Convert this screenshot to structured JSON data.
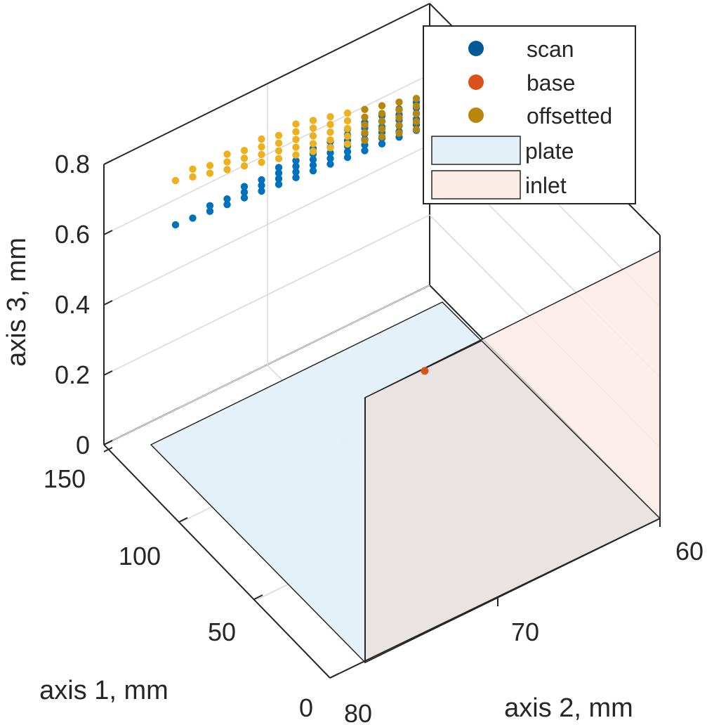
{
  "chart_data": {
    "type": "scatter",
    "projection": "3d",
    "title": "",
    "xlabel": "axis 1, mm",
    "ylabel": "axis 2, mm",
    "zlabel": "axis 3, mm",
    "xlim": [
      0,
      150
    ],
    "ylim": [
      60,
      80
    ],
    "zlim": [
      0,
      0.8
    ],
    "xticks": [
      "0",
      "50",
      "100",
      "150"
    ],
    "yticks": [
      "60",
      "70",
      "80"
    ],
    "zticks": [
      "0",
      "0.2",
      "0.4",
      "0.6",
      "0.8"
    ],
    "grid": true,
    "legend_position": "top-right",
    "legend": [
      {
        "label": "scan",
        "marker": "dot",
        "color": "#005a96"
      },
      {
        "label": "base",
        "marker": "dot",
        "color": "#d95319"
      },
      {
        "label": "offsetted",
        "marker": "dot",
        "color": "#b8860b"
      },
      {
        "label": "plate",
        "marker": "patch",
        "color": "#e3f0f8"
      },
      {
        "label": "inlet",
        "marker": "patch",
        "color": "#fbebe6"
      }
    ],
    "series": [
      {
        "name": "scan",
        "color": "#0072bd",
        "points_note_units": "x: axis 1 (mm), y: axis 2 (mm), z: axis 3 (mm)",
        "points": [
          [
            150,
            79.5,
            0.62
          ],
          [
            150,
            78.5,
            0.62
          ],
          [
            150,
            77.5,
            0.63
          ],
          [
            150,
            76.5,
            0.64
          ],
          [
            150,
            75.5,
            0.65
          ],
          [
            150,
            74.5,
            0.66
          ],
          [
            150,
            73.5,
            0.67
          ],
          [
            150,
            72.5,
            0.68
          ],
          [
            150,
            71.5,
            0.69
          ],
          [
            150,
            70.5,
            0.7
          ],
          [
            150,
            69.5,
            0.71
          ],
          [
            150,
            68.5,
            0.72
          ],
          [
            150,
            67.5,
            0.73
          ],
          [
            150,
            66.5,
            0.74
          ],
          [
            150,
            65.5,
            0.75
          ],
          [
            150,
            64.5,
            0.76
          ]
        ]
      },
      {
        "name": "base",
        "color": "#d95319",
        "points": [
          [
            40,
            72.5,
            0.2
          ]
        ]
      },
      {
        "name": "offsetted",
        "color": "#edb120",
        "points": [
          [
            150,
            79.5,
            0.75
          ],
          [
            150,
            78.5,
            0.76
          ],
          [
            150,
            77.5,
            0.77
          ],
          [
            150,
            76.5,
            0.78
          ],
          [
            150,
            75.5,
            0.79
          ],
          [
            150,
            74.5,
            0.8
          ],
          [
            150,
            73.5,
            0.8
          ],
          [
            150,
            72.5,
            0.81
          ],
          [
            150,
            71.5,
            0.81
          ],
          [
            150,
            70.5,
            0.82
          ],
          [
            150,
            69.5,
            0.82
          ],
          [
            150,
            68.5,
            0.83
          ],
          [
            150,
            67.5,
            0.83
          ],
          [
            150,
            66.5,
            0.83
          ],
          [
            150,
            65.5,
            0.84
          ],
          [
            150,
            64.5,
            0.84
          ]
        ]
      },
      {
        "name": "plate",
        "type": "surface",
        "color": "#e3f0f8",
        "description_z": 0
      },
      {
        "name": "inlet",
        "type": "surface",
        "color": "#fbebe6"
      }
    ]
  }
}
